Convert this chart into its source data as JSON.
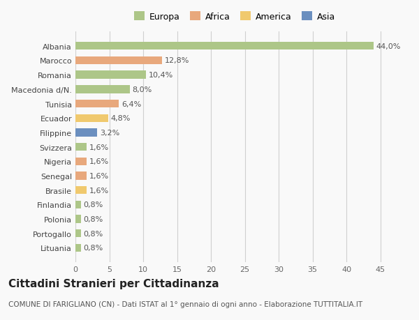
{
  "countries": [
    "Albania",
    "Marocco",
    "Romania",
    "Macedonia d/N.",
    "Tunisia",
    "Ecuador",
    "Filippine",
    "Svizzera",
    "Nigeria",
    "Senegal",
    "Brasile",
    "Finlandia",
    "Polonia",
    "Portogallo",
    "Lituania"
  ],
  "values": [
    44.0,
    12.8,
    10.4,
    8.0,
    6.4,
    4.8,
    3.2,
    1.6,
    1.6,
    1.6,
    1.6,
    0.8,
    0.8,
    0.8,
    0.8
  ],
  "labels": [
    "44,0%",
    "12,8%",
    "10,4%",
    "8,0%",
    "6,4%",
    "4,8%",
    "3,2%",
    "1,6%",
    "1,6%",
    "1,6%",
    "1,6%",
    "0,8%",
    "0,8%",
    "0,8%",
    "0,8%"
  ],
  "colors": [
    "#adc688",
    "#e8a87c",
    "#adc688",
    "#adc688",
    "#e8a87c",
    "#f0c96e",
    "#6b8fbf",
    "#adc688",
    "#e8a87c",
    "#e8a87c",
    "#f0c96e",
    "#adc688",
    "#adc688",
    "#adc688",
    "#adc688"
  ],
  "legend_labels": [
    "Europa",
    "Africa",
    "America",
    "Asia"
  ],
  "legend_colors": [
    "#adc688",
    "#e8a87c",
    "#f0c96e",
    "#6b8fbf"
  ],
  "title": "Cittadini Stranieri per Cittadinanza",
  "subtitle": "COMUNE DI FARIGLIANO (CN) - Dati ISTAT al 1° gennaio di ogni anno - Elaborazione TUTTITALIA.IT",
  "xlim": [
    0,
    47
  ],
  "xticks": [
    0,
    5,
    10,
    15,
    20,
    25,
    30,
    35,
    40,
    45
  ],
  "background_color": "#f9f9f9",
  "grid_color": "#d0d0d0",
  "bar_height": 0.55,
  "title_fontsize": 11,
  "subtitle_fontsize": 7.5,
  "tick_fontsize": 8,
  "label_fontsize": 8
}
